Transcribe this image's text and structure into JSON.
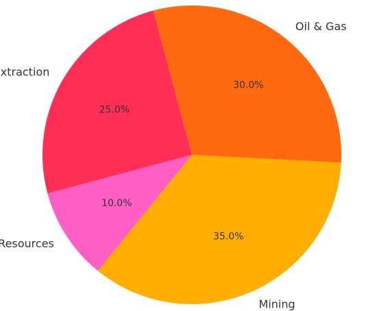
{
  "chart_data": {
    "type": "pie",
    "title": "",
    "start_angle_deg": 90,
    "direction": "counterclockwise",
    "slices": [
      {
        "label": "Metal Extraction",
        "value": 25.0,
        "pct_text": "25.0%",
        "color": "#ff2e55"
      },
      {
        "label": "Other Resources",
        "value": 10.0,
        "pct_text": "10.0%",
        "color": "#ff5ec4"
      },
      {
        "label": "Mining",
        "value": 35.0,
        "pct_text": "35.0%",
        "color": "#ffae00"
      },
      {
        "label": "Oil & Gas",
        "value": 30.0,
        "pct_text": "30.0%",
        "color": "#ff6910"
      }
    ]
  }
}
